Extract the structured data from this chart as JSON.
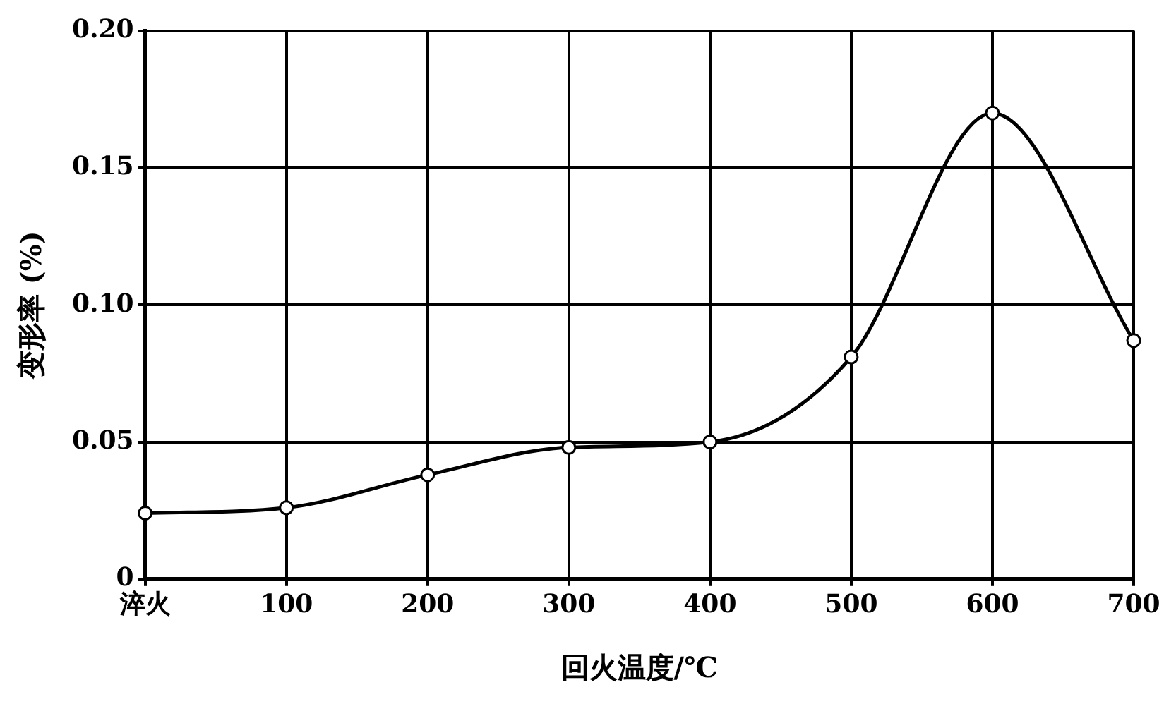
{
  "chart_data": {
    "type": "line",
    "xlabel": "回火温度/℃",
    "ylabel": "变形率 (%)",
    "categories": [
      "淬火",
      "100",
      "200",
      "300",
      "400",
      "500",
      "600",
      "700"
    ],
    "series": [
      {
        "color": "#000000",
        "values": [
          0.024,
          0.026,
          0.038,
          0.048,
          0.05,
          0.081,
          0.17,
          0.087
        ]
      }
    ],
    "ylim": [
      0,
      0.2
    ],
    "yticks": [
      0,
      {
        "value": 0.05,
        "label": "0.05"
      },
      {
        "value": 0.1,
        "label": "0.10"
      },
      {
        "value": 0.15,
        "label": "0.15"
      },
      {
        "value": 0.2,
        "label": "0.20"
      }
    ],
    "grid": true,
    "legend": false,
    "marker": "circle",
    "line_style": "solid"
  }
}
